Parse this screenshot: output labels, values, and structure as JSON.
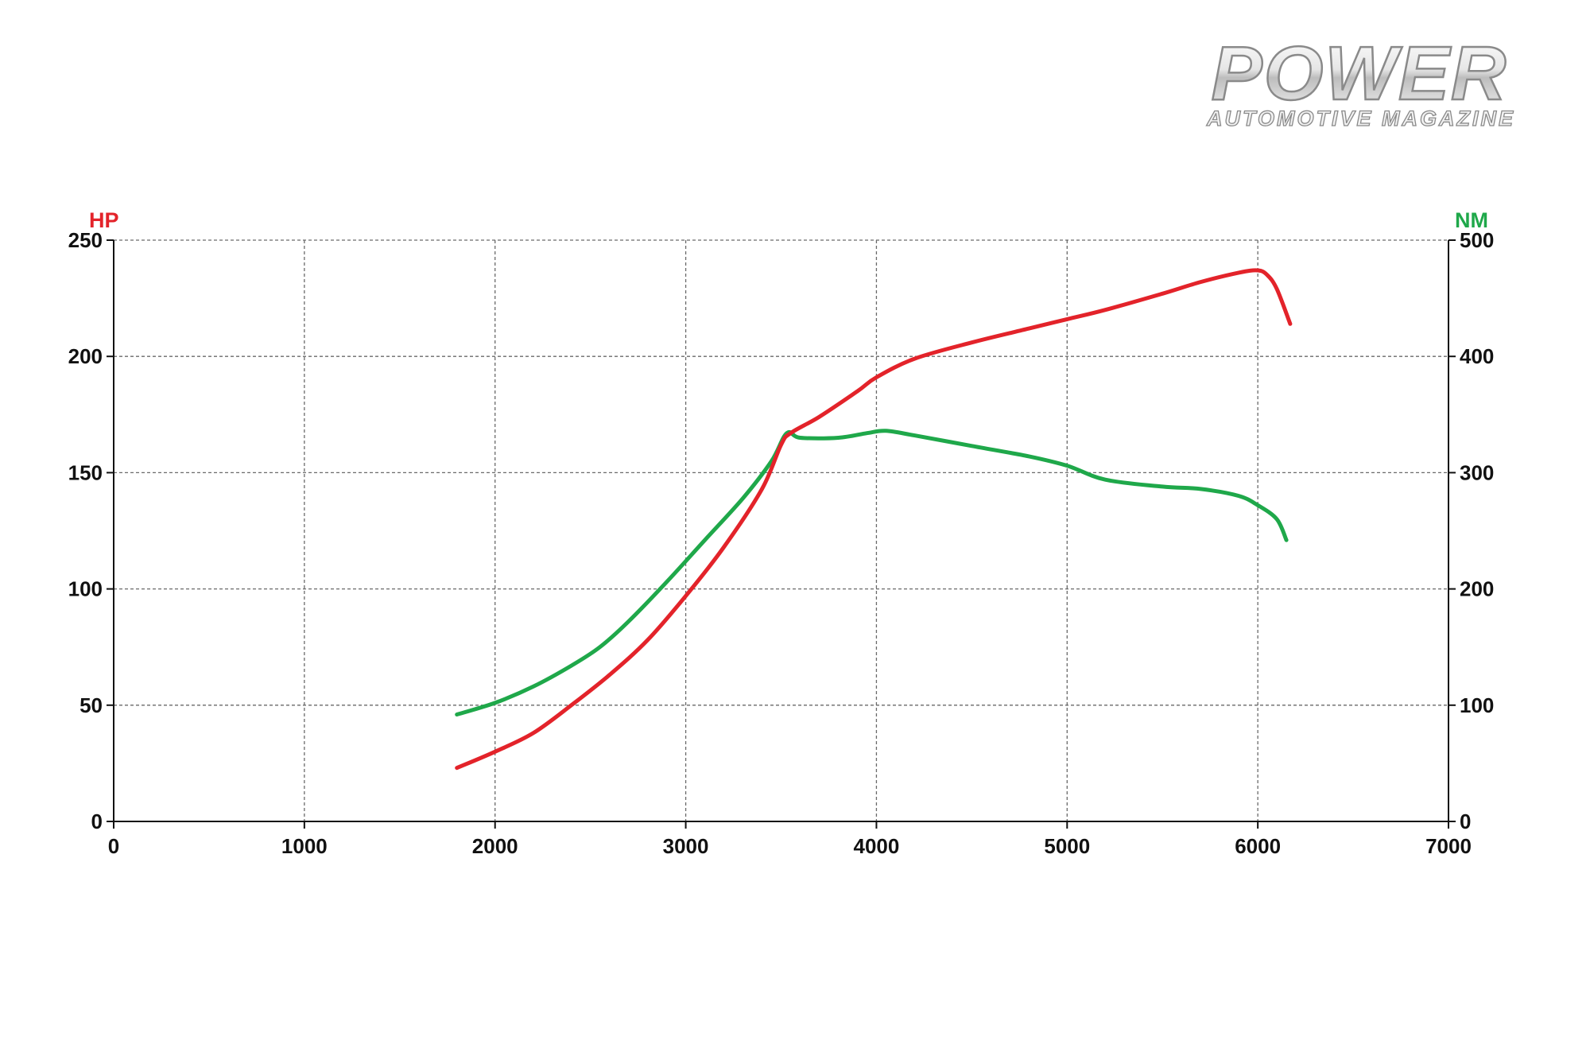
{
  "brand": {
    "title": "POWER",
    "subtitle": "AUTOMOTIVE MAGAZINE"
  },
  "chart_data": {
    "type": "line",
    "title": "",
    "xlabel": "",
    "xlim": [
      0,
      7000
    ],
    "xticks": [
      "0",
      "1000",
      "2000",
      "3000",
      "4000",
      "5000",
      "6000",
      "7000"
    ],
    "y_left": {
      "label": "HP",
      "color": "#e3232a",
      "ylim": [
        0,
        250
      ],
      "ticks": [
        "0",
        "50",
        "100",
        "150",
        "200",
        "250"
      ]
    },
    "y_right": {
      "label": "NM",
      "color": "#1fa84a",
      "ylim": [
        0,
        500
      ],
      "ticks": [
        "0",
        "100",
        "200",
        "300",
        "400",
        "500"
      ]
    },
    "grid": true,
    "series": [
      {
        "axis": "left",
        "color": "#e3232a",
        "x": [
          1800,
          2000,
          2200,
          2400,
          2600,
          2800,
          3000,
          3200,
          3400,
          3500,
          3550,
          3700,
          3900,
          4000,
          4200,
          4500,
          4800,
          5000,
          5200,
          5500,
          5700,
          5900,
          6000,
          6050,
          6100,
          6170
        ],
        "y": [
          23,
          30,
          38,
          50,
          63,
          78,
          97,
          118,
          143,
          162,
          167,
          174,
          185,
          191,
          199,
          206,
          212,
          216,
          220,
          227,
          232,
          236,
          237,
          235,
          229,
          214
        ]
      },
      {
        "axis": "right",
        "color": "#1fa84a",
        "x": [
          1800,
          2000,
          2200,
          2400,
          2550,
          2700,
          2900,
          3100,
          3300,
          3450,
          3530,
          3600,
          3800,
          3950,
          4050,
          4200,
          4500,
          4800,
          5000,
          5200,
          5500,
          5700,
          5900,
          6000,
          6100,
          6150
        ],
        "y": [
          92,
          102,
          116,
          134,
          150,
          172,
          206,
          242,
          278,
          310,
          334,
          330,
          330,
          334,
          336,
          332,
          323,
          314,
          306,
          294,
          288,
          286,
          280,
          272,
          260,
          242
        ]
      }
    ]
  }
}
